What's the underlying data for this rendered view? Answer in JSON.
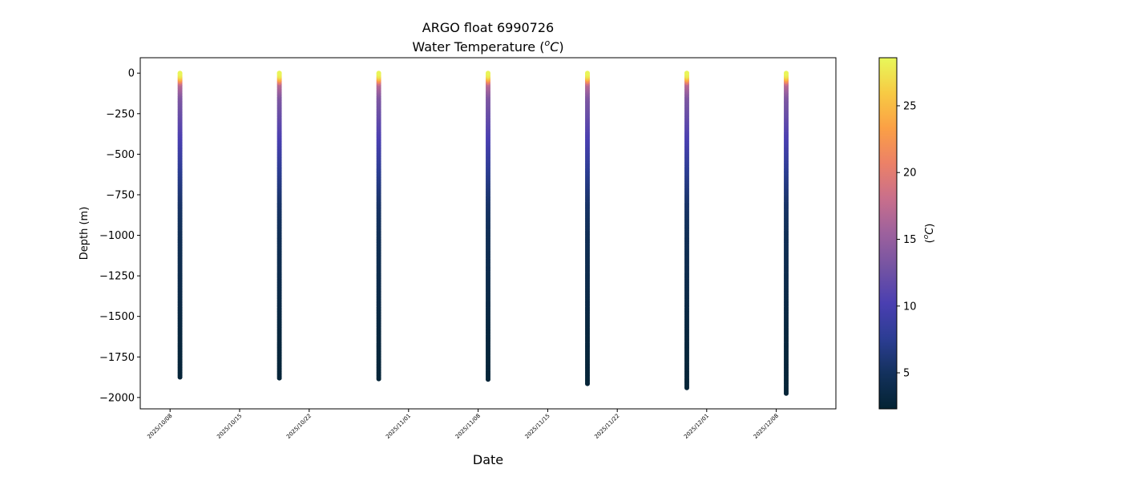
{
  "chart_data": {
    "type": "scatter",
    "title": "ARGO float 6990726",
    "subtitle_prefix": "Water Temperature (",
    "subtitle_unit_sup": "o",
    "subtitle_unit_letter": "C",
    "subtitle_suffix": ")",
    "xlabel": "Date",
    "ylabel": "Depth (m)",
    "xlim": [
      "2025-10-05",
      "2025-12-14"
    ],
    "ylim": [
      -2070,
      95
    ],
    "x_ticks": [
      {
        "date": "2025-10-08",
        "label": "2025/10/08"
      },
      {
        "date": "2025-10-15",
        "label": "2025/10/15"
      },
      {
        "date": "2025-10-22",
        "label": "2025/10/22"
      },
      {
        "date": "2025-11-01",
        "label": "2025/11/01"
      },
      {
        "date": "2025-11-08",
        "label": "2025/11/08"
      },
      {
        "date": "2025-11-15",
        "label": "2025/11/15"
      },
      {
        "date": "2025-11-22",
        "label": "2025/11/22"
      },
      {
        "date": "2025-12-01",
        "label": "2025/12/01"
      },
      {
        "date": "2025-12-08",
        "label": "2025/12/08"
      }
    ],
    "y_ticks": [
      {
        "value": 0,
        "label": "0"
      },
      {
        "value": -250,
        "label": "−250"
      },
      {
        "value": -500,
        "label": "−500"
      },
      {
        "value": -750,
        "label": "−750"
      },
      {
        "value": -1000,
        "label": "−1000"
      },
      {
        "value": -1250,
        "label": "−1250"
      },
      {
        "value": -1500,
        "label": "−1500"
      },
      {
        "value": -1750,
        "label": "−1750"
      },
      {
        "value": -2000,
        "label": "−2000"
      }
    ],
    "profiles": [
      {
        "date": "2025-10-09",
        "max_depth": -1875
      },
      {
        "date": "2025-10-19",
        "max_depth": -1880
      },
      {
        "date": "2025-10-29",
        "max_depth": -1885
      },
      {
        "date": "2025-11-09",
        "max_depth": -1888
      },
      {
        "date": "2025-11-19",
        "max_depth": -1915
      },
      {
        "date": "2025-11-29",
        "max_depth": -1940
      },
      {
        "date": "2025-12-09",
        "max_depth": -1975
      }
    ],
    "temperature_profile": [
      {
        "depth": 0,
        "temp": 28.4
      },
      {
        "depth": -20,
        "temp": 27.5
      },
      {
        "depth": -40,
        "temp": 24.0
      },
      {
        "depth": -70,
        "temp": 17.0
      },
      {
        "depth": -150,
        "temp": 13.5
      },
      {
        "depth": -300,
        "temp": 11.5
      },
      {
        "depth": -450,
        "temp": 9.5
      },
      {
        "depth": -600,
        "temp": 7.5
      },
      {
        "depth": -800,
        "temp": 5.5
      },
      {
        "depth": -1000,
        "temp": 4.5
      },
      {
        "depth": -1300,
        "temp": 3.8
      },
      {
        "depth": -1600,
        "temp": 3.0
      },
      {
        "depth": -2000,
        "temp": 2.5
      }
    ],
    "colorbar": {
      "label_open": "(",
      "label_sup": "o",
      "label_letter": "C",
      "label_close": ")",
      "range": [
        2.3,
        28.6
      ],
      "ticks": [
        {
          "value": 5,
          "label": "5"
        },
        {
          "value": 10,
          "label": "10"
        },
        {
          "value": 15,
          "label": "15"
        },
        {
          "value": 20,
          "label": "20"
        },
        {
          "value": 25,
          "label": "25"
        }
      ],
      "colormap": "thermal",
      "stops": [
        "#042333",
        "#13315c",
        "#2c3d93",
        "#4a3fb1",
        "#7353a3",
        "#9d619d",
        "#c96f8b",
        "#ec8167",
        "#fba045",
        "#f7cb44",
        "#e8f85a"
      ]
    },
    "grid": false,
    "legend": "none"
  }
}
